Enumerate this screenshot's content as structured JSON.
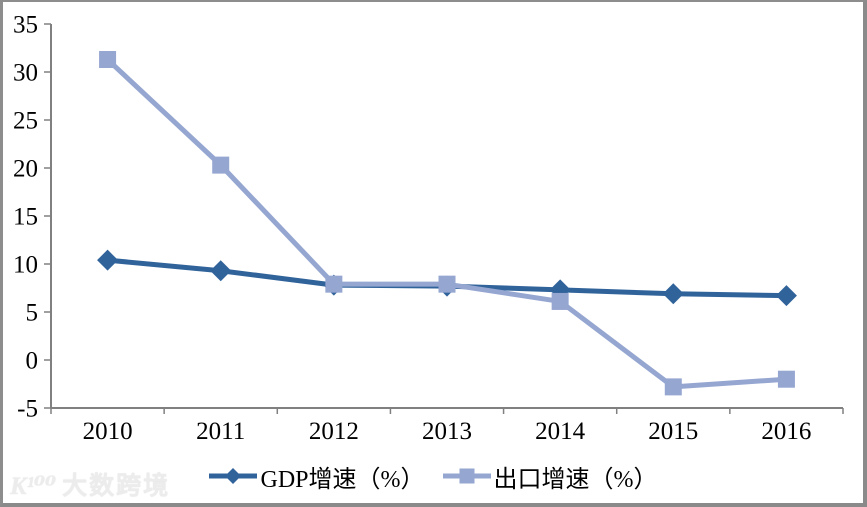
{
  "chart_data": {
    "type": "line",
    "title": "",
    "categories": [
      "2010",
      "2011",
      "2012",
      "2013",
      "2014",
      "2015",
      "2016"
    ],
    "series": [
      {
        "name": "GDP增速（%）",
        "marker": "diamond",
        "color": "#31639B",
        "values": [
          10.4,
          9.3,
          7.8,
          7.7,
          7.3,
          6.9,
          6.7
        ]
      },
      {
        "name": "出口增速（%）",
        "marker": "square",
        "color": "#95A6D1",
        "values": [
          31.3,
          20.3,
          7.9,
          7.9,
          6.1,
          -2.8,
          -2.0
        ]
      }
    ],
    "ylim": [
      -5,
      35
    ],
    "ytick_step": 5,
    "yticks": [
      35,
      30,
      25,
      20,
      15,
      10,
      5,
      0,
      -5
    ],
    "grid": false,
    "legend_position": "bottom",
    "axis_color": "#808080",
    "tick_label_color": "#000000",
    "xlabel": "",
    "ylabel": ""
  },
  "watermark": {
    "logo": "K¹⁰⁰",
    "text": "大数跨境"
  }
}
